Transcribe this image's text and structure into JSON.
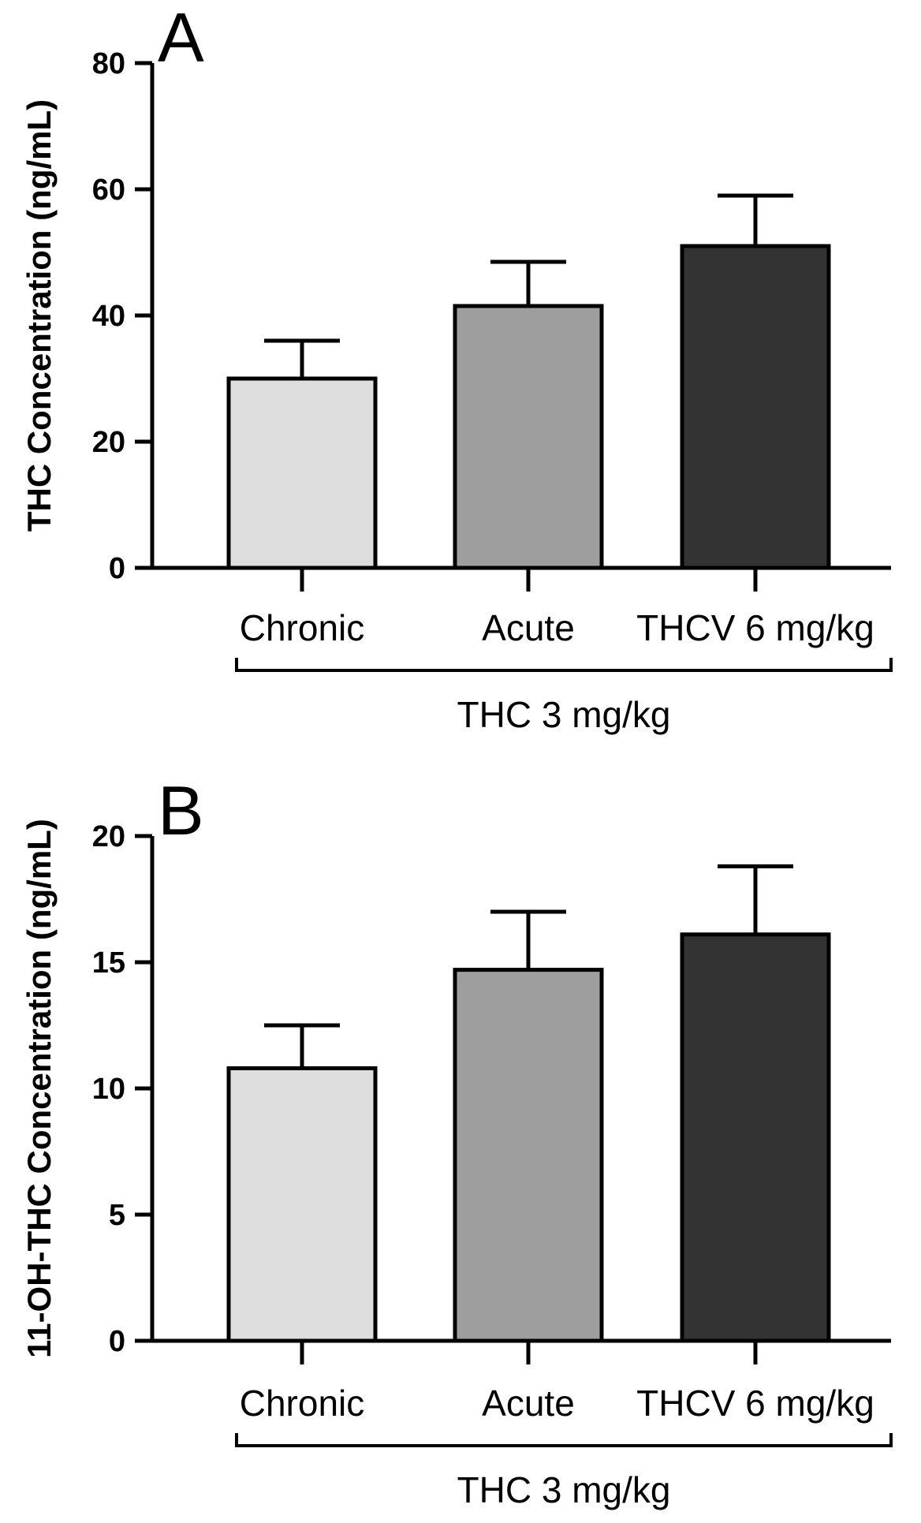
{
  "chart_data": [
    {
      "type": "bar",
      "panel": "A",
      "categories": [
        "Chronic",
        "Acute",
        "THCV 6 mg/kg"
      ],
      "values": [
        30,
        41.5,
        51
      ],
      "errors": [
        6,
        7,
        8
      ],
      "colors": [
        "#dedede",
        "#9e9e9e",
        "#333333"
      ],
      "group_label": "THC 3 mg/kg",
      "ylabel": "THC Concentration (ng/mL)",
      "ylim": [
        0,
        80
      ],
      "yticks": [
        0,
        20,
        40,
        60,
        80
      ],
      "grid": false
    },
    {
      "type": "bar",
      "panel": "B",
      "categories": [
        "Chronic",
        "Acute",
        "THCV 6 mg/kg"
      ],
      "values": [
        10.8,
        14.7,
        16.1
      ],
      "errors": [
        1.7,
        2.3,
        2.7
      ],
      "colors": [
        "#dedede",
        "#9e9e9e",
        "#333333"
      ],
      "group_label": "THC 3 mg/kg",
      "ylabel": "11-OH-THC Concentration (ng/mL)",
      "ylim": [
        0,
        20
      ],
      "yticks": [
        0,
        5,
        10,
        15,
        20
      ],
      "grid": false
    }
  ]
}
